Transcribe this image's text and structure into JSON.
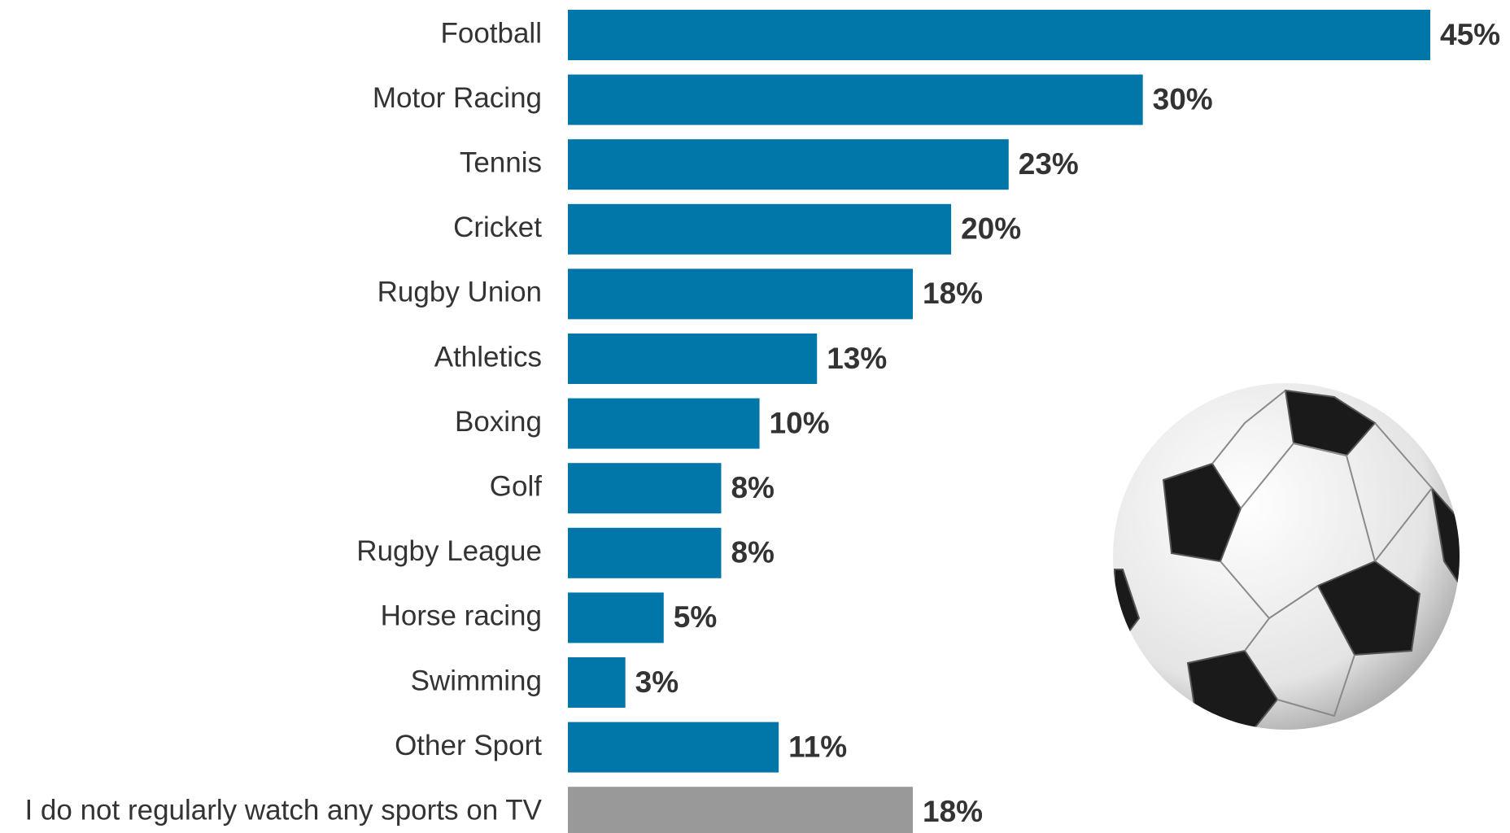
{
  "chart_data": {
    "type": "hbar",
    "categories": [
      "Football",
      "Motor Racing",
      "Tennis",
      "Cricket",
      "Rugby Union",
      "Athletics",
      "Boxing",
      "Golf",
      "Rugby League",
      "Horse racing",
      "Swimming",
      "Other Sport",
      "I do not regularly watch any sports on TV"
    ],
    "values": [
      45,
      30,
      23,
      20,
      18,
      13,
      10,
      8,
      8,
      5,
      3,
      11,
      18
    ],
    "value_labels": [
      "45%",
      "30%",
      "23%",
      "20%",
      "18%",
      "13%",
      "10%",
      "8%",
      "8%",
      "5%",
      "3%",
      "11%",
      "18%"
    ],
    "colors": [
      "#0077a8",
      "#0077a8",
      "#0077a8",
      "#0077a8",
      "#0077a8",
      "#0077a8",
      "#0077a8",
      "#0077a8",
      "#0077a8",
      "#0077a8",
      "#0077a8",
      "#0077a8",
      "#999999"
    ]
  }
}
